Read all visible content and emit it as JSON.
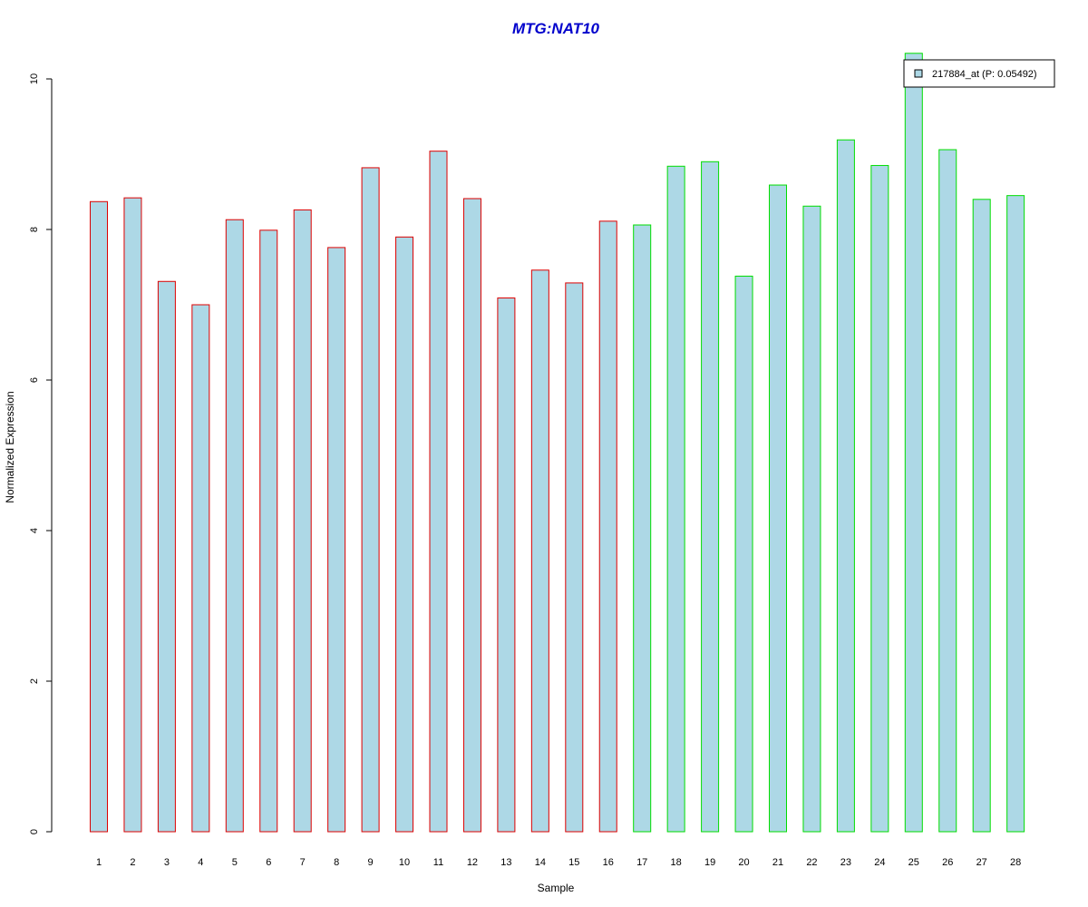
{
  "chart_data": {
    "type": "bar",
    "title": "MTG:NAT10",
    "xlabel": "Sample",
    "ylabel": "Normalized Expression",
    "ylim": [
      0,
      10
    ],
    "yticks": [
      "0",
      "2",
      "4",
      "6",
      "8",
      "10"
    ],
    "grid": false,
    "legend": {
      "placement": "top-right",
      "entries": [
        "217884_at (P: 0.05492)"
      ]
    },
    "categories": [
      "1",
      "2",
      "3",
      "4",
      "5",
      "6",
      "7",
      "8",
      "9",
      "10",
      "11",
      "12",
      "13",
      "14",
      "15",
      "16",
      "17",
      "18",
      "19",
      "20",
      "21",
      "22",
      "23",
      "24",
      "25",
      "26",
      "27",
      "28"
    ],
    "series": [
      {
        "name": "217884_at (P: 0.05492)",
        "values": [
          8.37,
          8.42,
          7.31,
          7.0,
          8.13,
          7.99,
          8.26,
          7.76,
          8.82,
          7.9,
          9.04,
          8.41,
          7.09,
          7.46,
          7.29,
          8.11,
          8.06,
          8.84,
          8.9,
          7.38,
          8.59,
          8.31,
          9.19,
          8.85,
          10.34,
          9.06,
          8.4,
          8.45
        ],
        "group": [
          "a",
          "a",
          "a",
          "a",
          "a",
          "a",
          "a",
          "a",
          "a",
          "a",
          "a",
          "a",
          "a",
          "a",
          "a",
          "a",
          "b",
          "b",
          "b",
          "b",
          "b",
          "b",
          "b",
          "b",
          "b",
          "b",
          "b",
          "b"
        ]
      }
    ],
    "colors": {
      "title": "#0000cc",
      "fill": "#add8e6",
      "group_a_border": "#dd0000",
      "group_b_border": "#00dd00",
      "axis": "#000000"
    }
  }
}
